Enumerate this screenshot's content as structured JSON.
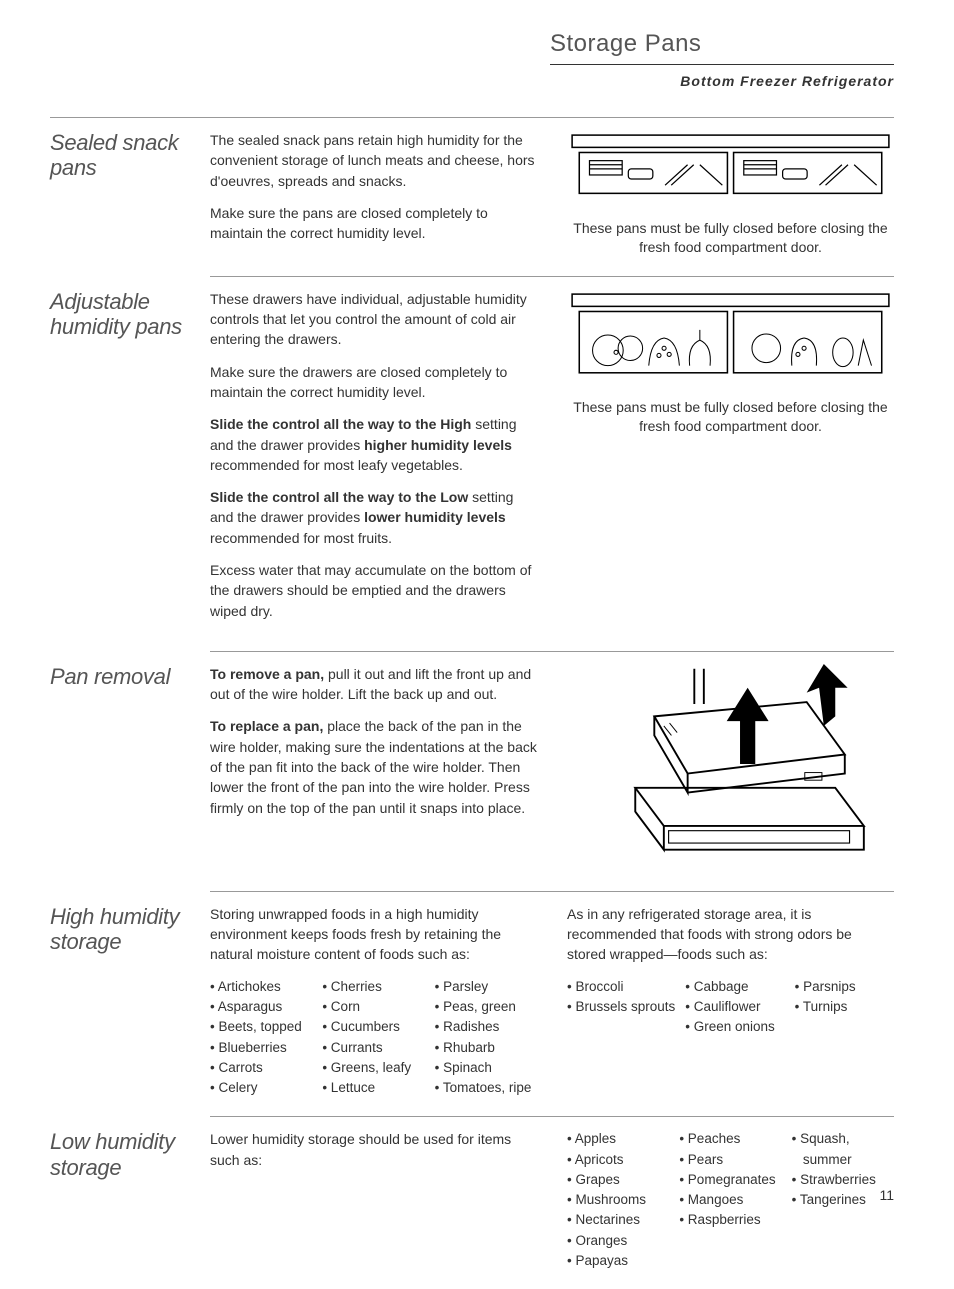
{
  "header": {
    "title": "Storage Pans",
    "subtitle": "Bottom Freezer Refrigerator"
  },
  "page_number": "11",
  "sections": {
    "sealed": {
      "heading": "Sealed snack pans",
      "p1": "The sealed snack pans retain high humidity for the convenient storage of lunch meats and cheese, hors d'oeuvres, spreads and snacks.",
      "p2": "Make sure the pans are closed completely to maintain the correct humidity level.",
      "caption": "These pans must be fully closed before closing the fresh food compartment door."
    },
    "adjustable": {
      "heading": "Adjustable humidity pans",
      "p1": "These drawers have individual, adjustable humidity controls that let you control the amount of cold air entering the drawers.",
      "p2": "Make sure the drawers are closed completely to maintain the correct humidity level.",
      "p3a": "Slide the control all the way to the High",
      "p3b": " setting and the drawer provides ",
      "p3c": "higher humidity levels",
      "p3d": " recommended for most leafy vegetables.",
      "p4a": "Slide the control all the way to the Low",
      "p4b": " setting and the drawer provides ",
      "p4c": "lower humidity levels",
      "p4d": " recommended for most fruits.",
      "p5": "Excess water that may accumulate on the bottom of the drawers should be emptied and the drawers wiped dry.",
      "caption": "These pans must be fully closed before closing the fresh food compartment door."
    },
    "removal": {
      "heading": "Pan removal",
      "p1a": "To remove a pan,",
      "p1b": " pull it out and lift the front up and out of the wire holder. Lift the back up and out.",
      "p2a": "To replace a pan,",
      "p2b": " place the back of the pan in the wire holder, making sure the indentations at the back of the pan fit into the back of the wire holder. Then lower the front of the pan into the wire holder. Press firmly on the top of the pan until it snaps into place."
    },
    "high": {
      "heading": "High humidity storage",
      "p1": "Storing unwrapped foods in a high humidity environment keeps foods fresh by retaining the natural moisture content of foods such as:",
      "p2": "As in any refrigerated storage area, it is recommended that foods with strong odors be stored wrapped—foods such as:",
      "foods1": {
        "c1": [
          "Artichokes",
          "Asparagus",
          "Beets, topped",
          "Blueberries",
          "Carrots",
          "Celery"
        ],
        "c2": [
          "Cherries",
          "Corn",
          "Cucumbers",
          "Currants",
          "Greens, leafy",
          "Lettuce"
        ],
        "c3": [
          "Parsley",
          "Peas, green",
          "Radishes",
          "Rhubarb",
          "Spinach",
          "Tomatoes, ripe"
        ]
      },
      "foods2": {
        "c1": [
          "Broccoli",
          "Brussels sprouts"
        ],
        "c2": [
          "Cabbage",
          "Cauliflower",
          "Green onions"
        ],
        "c3": [
          "Parsnips",
          "Turnips"
        ]
      }
    },
    "low": {
      "heading": "Low humidity storage",
      "p1": "Lower humidity storage should be used for items such as:",
      "foods": {
        "c1": [
          "Apples",
          "Apricots",
          "Grapes",
          "Mushrooms",
          "Nectarines",
          "Oranges",
          "Papayas"
        ],
        "c2": [
          "Peaches",
          "Pears",
          "Pomegranates",
          "Mangoes",
          "Raspberries"
        ],
        "c3": [
          "Squash, summer",
          "Strawberries",
          "Tangerines"
        ]
      }
    }
  }
}
